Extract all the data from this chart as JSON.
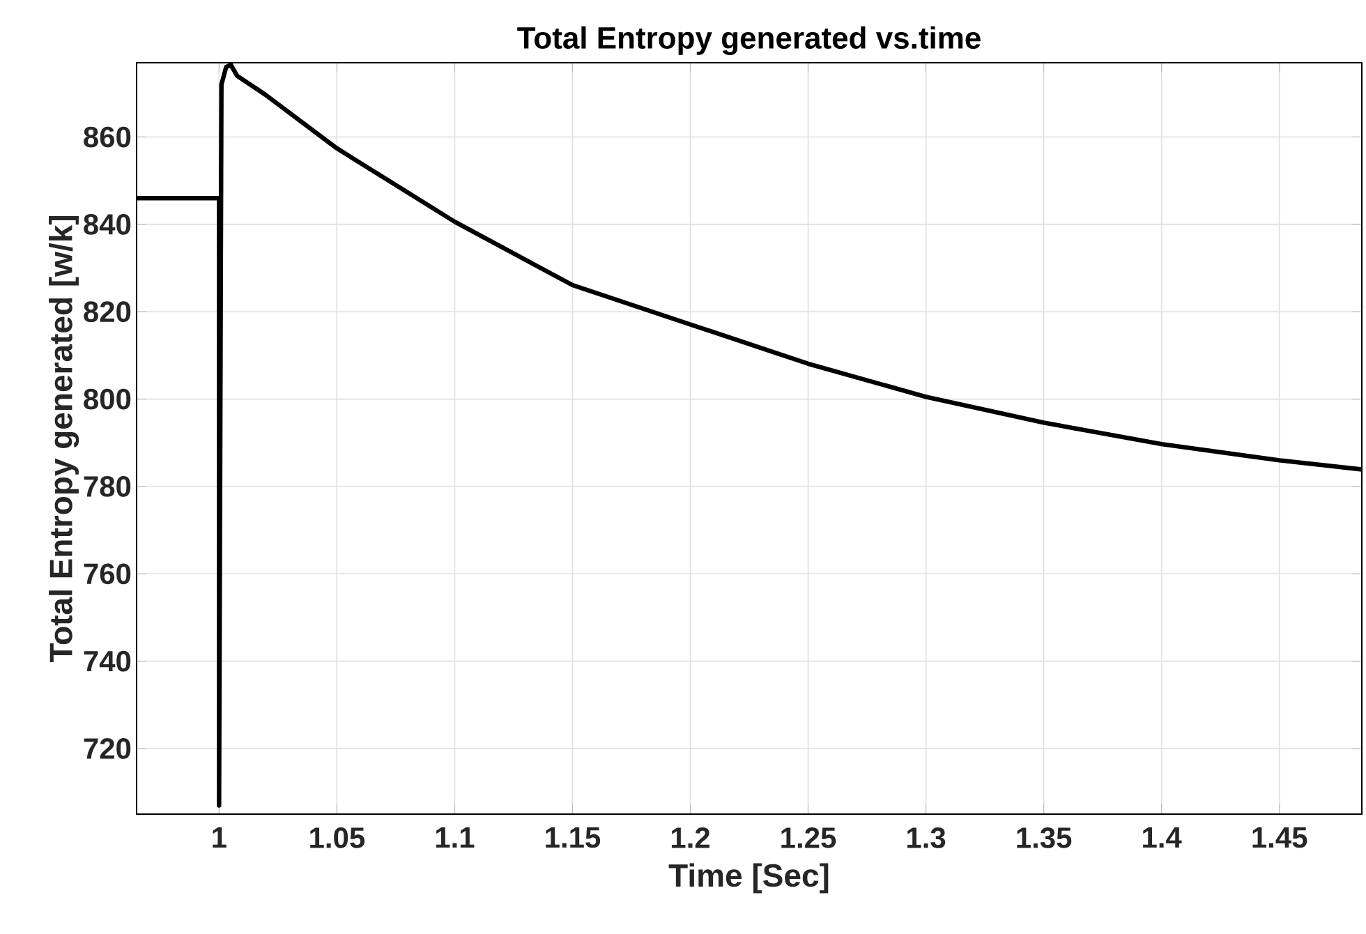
{
  "chart_data": {
    "type": "line",
    "title": "Total Entropy generated vs.time",
    "xlabel": "Time [Sec]",
    "ylabel": "Total Entropy generated [w/k]",
    "xlim": [
      0.965,
      1.485
    ],
    "ylim": [
      705,
      877
    ],
    "xticks": [
      1,
      1.05,
      1.1,
      1.15,
      1.2,
      1.25,
      1.3,
      1.35,
      1.4,
      1.45
    ],
    "yticks": [
      720,
      740,
      760,
      780,
      800,
      820,
      840,
      860
    ],
    "grid": true,
    "marker": "none",
    "line_style": "solid",
    "series": [
      {
        "color": "#000000",
        "x": [
          0.965,
          1.0,
          1.0,
          1.001,
          1.003,
          1.005,
          1.0077,
          1.0196,
          1.05,
          1.1,
          1.15,
          1.2,
          1.25,
          1.3,
          1.35,
          1.4,
          1.45,
          1.485
        ],
        "values": [
          846,
          846,
          707,
          872,
          876,
          876.5,
          874,
          869.7,
          857.4,
          840.6,
          826.1,
          817.1,
          808.1,
          800.5,
          794.6,
          789.7,
          786,
          783.9
        ]
      }
    ]
  }
}
